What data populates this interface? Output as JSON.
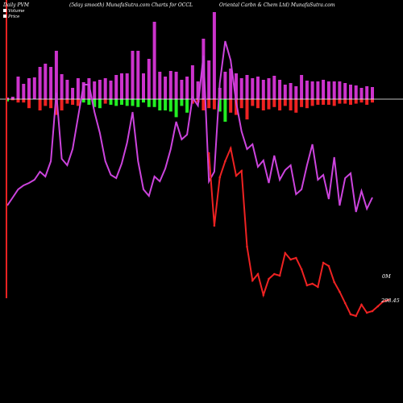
{
  "chart_data": {
    "type": "bar",
    "title": "(5day smooth) MunafaSutra.com Charts for OCCL",
    "company": "Oriental Carbn & Chem Ltd) MunafaSutra.com",
    "corner_label": "Daily PVM",
    "legend": [
      {
        "name": "Volume",
        "color": "#ffffff"
      },
      {
        "name": "Price",
        "color": "#ffffff"
      }
    ],
    "value_labels": {
      "volume": "0M",
      "price": "298.45"
    },
    "colors": {
      "background": "#000000",
      "baseline": "#ffffff",
      "volume_bar": "#cc33cc",
      "positive": "#22ee22",
      "negative": "#ee2222",
      "volume_line": "#cc44dd",
      "price_line": "#ee2222"
    },
    "volume": [
      2,
      3,
      28,
      19,
      26,
      27,
      40,
      44,
      40,
      60,
      31,
      24,
      14,
      26,
      21,
      26,
      22,
      24,
      26,
      23,
      30,
      32,
      32,
      60,
      60,
      32,
      50,
      96,
      34,
      28,
      35,
      34,
      24,
      28,
      42,
      22,
      75,
      48,
      108,
      14,
      34,
      38,
      32,
      26,
      30,
      26,
      28,
      24,
      26,
      29,
      24,
      18,
      20,
      16,
      30,
      23,
      22,
      22,
      24,
      22,
      22,
      22,
      20,
      18,
      17,
      14,
      16,
      15
    ],
    "change": [
      2,
      -1,
      -3,
      -3,
      -8,
      0,
      -10,
      -6,
      -8,
      -14,
      -10,
      -4,
      -5,
      -6,
      3,
      5,
      7,
      8,
      -4,
      5,
      6,
      5,
      6,
      6,
      7,
      3,
      7,
      7,
      10,
      10,
      11,
      16,
      6,
      12,
      -4,
      -3,
      -10,
      -8,
      -9,
      11,
      20,
      -12,
      -14,
      -8,
      -18,
      -6,
      -8,
      -10,
      -9,
      -7,
      -10,
      -6,
      -10,
      -12,
      -7,
      -8,
      -6,
      -5,
      -5,
      -5,
      -6,
      -4,
      -4,
      -5,
      -4,
      -3,
      -5,
      -3
    ],
    "volume_line": [
      120,
      130,
      140,
      145,
      148,
      152,
      162,
      156,
      175,
      260,
      178,
      170,
      190,
      230,
      270,
      270,
      236,
      210,
      175,
      158,
      154,
      172,
      198,
      236,
      175,
      140,
      132,
      156,
      150,
      166,
      190,
      224,
      202,
      208,
      254,
      244,
      306,
      150,
      162,
      272,
      324,
      300,
      248,
      212,
      190,
      196,
      168,
      176,
      148,
      182,
      152,
      164,
      170,
      134,
      140,
      170,
      196,
      152,
      158,
      128,
      180,
      120,
      154,
      160,
      112,
      138,
      116,
      130
    ],
    "price": {
      "start_index": 37,
      "values": [
        300,
        210,
        270,
        290,
        306,
        272,
        278,
        184,
        142,
        150,
        124,
        144,
        150,
        148,
        176,
        168,
        170,
        156,
        136,
        138,
        134,
        164,
        160,
        140,
        128,
        114,
        100,
        98,
        112,
        102,
        104,
        110,
        116,
        118
      ]
    }
  }
}
